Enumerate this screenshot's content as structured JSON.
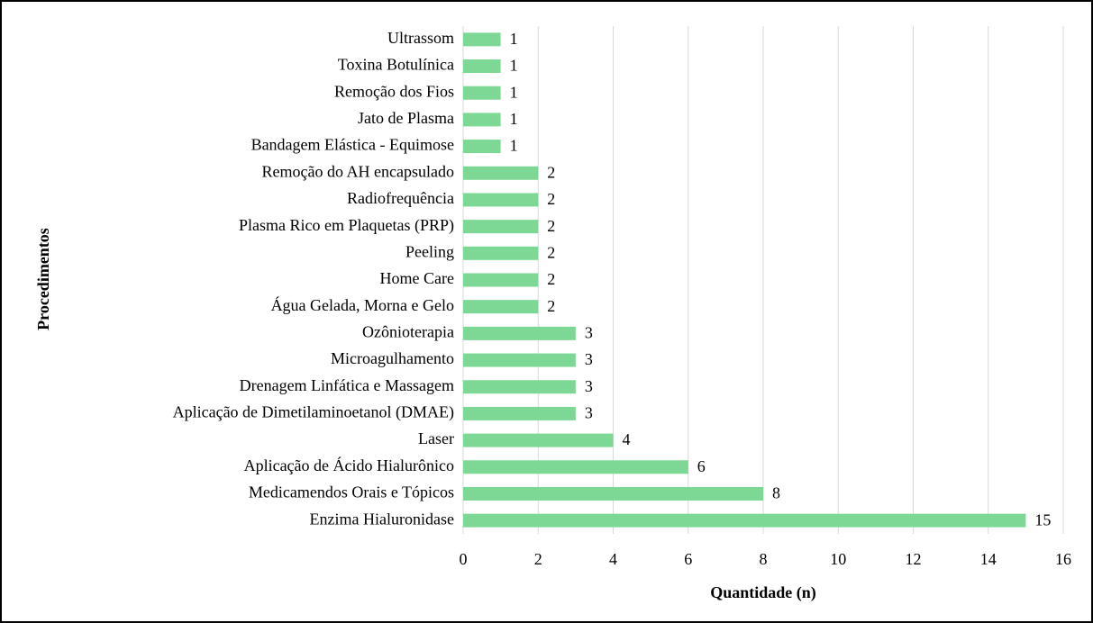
{
  "chart_data": {
    "type": "bar",
    "orientation": "horizontal",
    "xlabel": "Quantidade (n)",
    "ylabel": "Procedimentos",
    "categories": [
      "Ultrassom",
      "Toxina Botulínica",
      "Remoção dos Fios",
      "Jato de Plasma",
      "Bandagem Elástica - Equimose",
      "Remoção do AH encapsulado",
      "Radiofrequência",
      "Plasma Rico em Plaquetas (PRP)",
      "Peeling",
      "Home Care",
      "Água Gelada, Morna e Gelo",
      "Ozônioterapia",
      "Microagulhamento",
      "Drenagem Linfática e Massagem",
      "Aplicação de Dimetilaminoetanol (DMAE)",
      "Laser",
      "Aplicação de Ácido Hialurônico",
      "Medicamendos Orais e Tópicos",
      "Enzima Hialuronidase"
    ],
    "values": [
      1,
      1,
      1,
      1,
      1,
      2,
      2,
      2,
      2,
      2,
      2,
      3,
      3,
      3,
      3,
      4,
      6,
      8,
      15
    ],
    "color": "#7dd896",
    "xlim": [
      0,
      16
    ],
    "xticks": [
      0,
      2,
      4,
      6,
      8,
      10,
      12,
      14,
      16
    ],
    "grid": true
  }
}
